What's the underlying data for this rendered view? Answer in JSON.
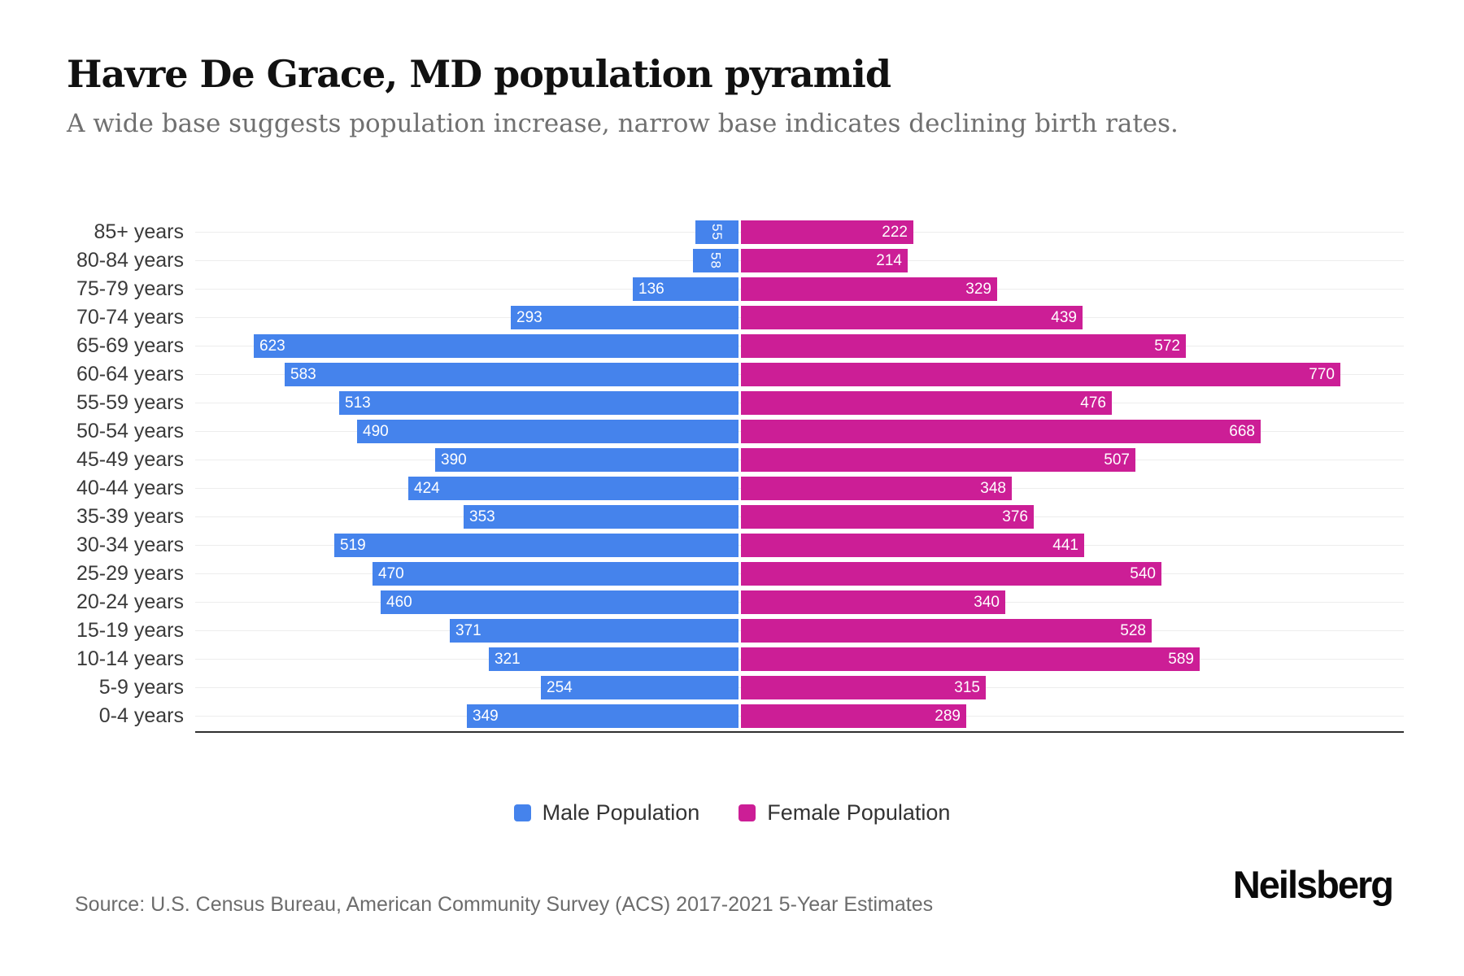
{
  "header": {
    "title": "Havre De Grace, MD population pyramid",
    "subtitle": "A wide base suggests population increase, narrow base indicates declining birth rates."
  },
  "chart_data": {
    "type": "bar",
    "variant": "population-pyramid",
    "orientation": "horizontal",
    "categories": [
      "85+ years",
      "80-84 years",
      "75-79 years",
      "70-74 years",
      "65-69 years",
      "60-64 years",
      "55-59 years",
      "50-54 years",
      "45-49 years",
      "40-44 years",
      "35-39 years",
      "30-34 years",
      "25-29 years",
      "20-24 years",
      "15-19 years",
      "10-14 years",
      "5-9 years",
      "0-4 years"
    ],
    "series": [
      {
        "name": "Male Population",
        "side": "left",
        "color": "#4583EC",
        "values": [
          55,
          58,
          136,
          293,
          623,
          583,
          513,
          490,
          390,
          424,
          353,
          519,
          470,
          460,
          371,
          321,
          254,
          349
        ]
      },
      {
        "name": "Female Population",
        "side": "right",
        "color": "#CC1E96",
        "values": [
          222,
          214,
          329,
          439,
          572,
          770,
          476,
          668,
          507,
          348,
          376,
          441,
          540,
          340,
          528,
          589,
          315,
          289
        ]
      }
    ],
    "value_labels": "inside-outer-end, white",
    "axis": {
      "male_axis_max": 700,
      "female_axis_max": 852,
      "gridlines": "light horizontal at category centers",
      "baseline": "dark x-axis line at bottom"
    }
  },
  "legend": {
    "items": [
      {
        "label": "Male Population",
        "color": "#4583EC"
      },
      {
        "label": "Female Population",
        "color": "#CC1E96"
      }
    ]
  },
  "footer": {
    "source": "Source: U.S. Census Bureau, American Community Survey (ACS) 2017-2021 5-Year Estimates",
    "brand": "Neilsberg"
  }
}
